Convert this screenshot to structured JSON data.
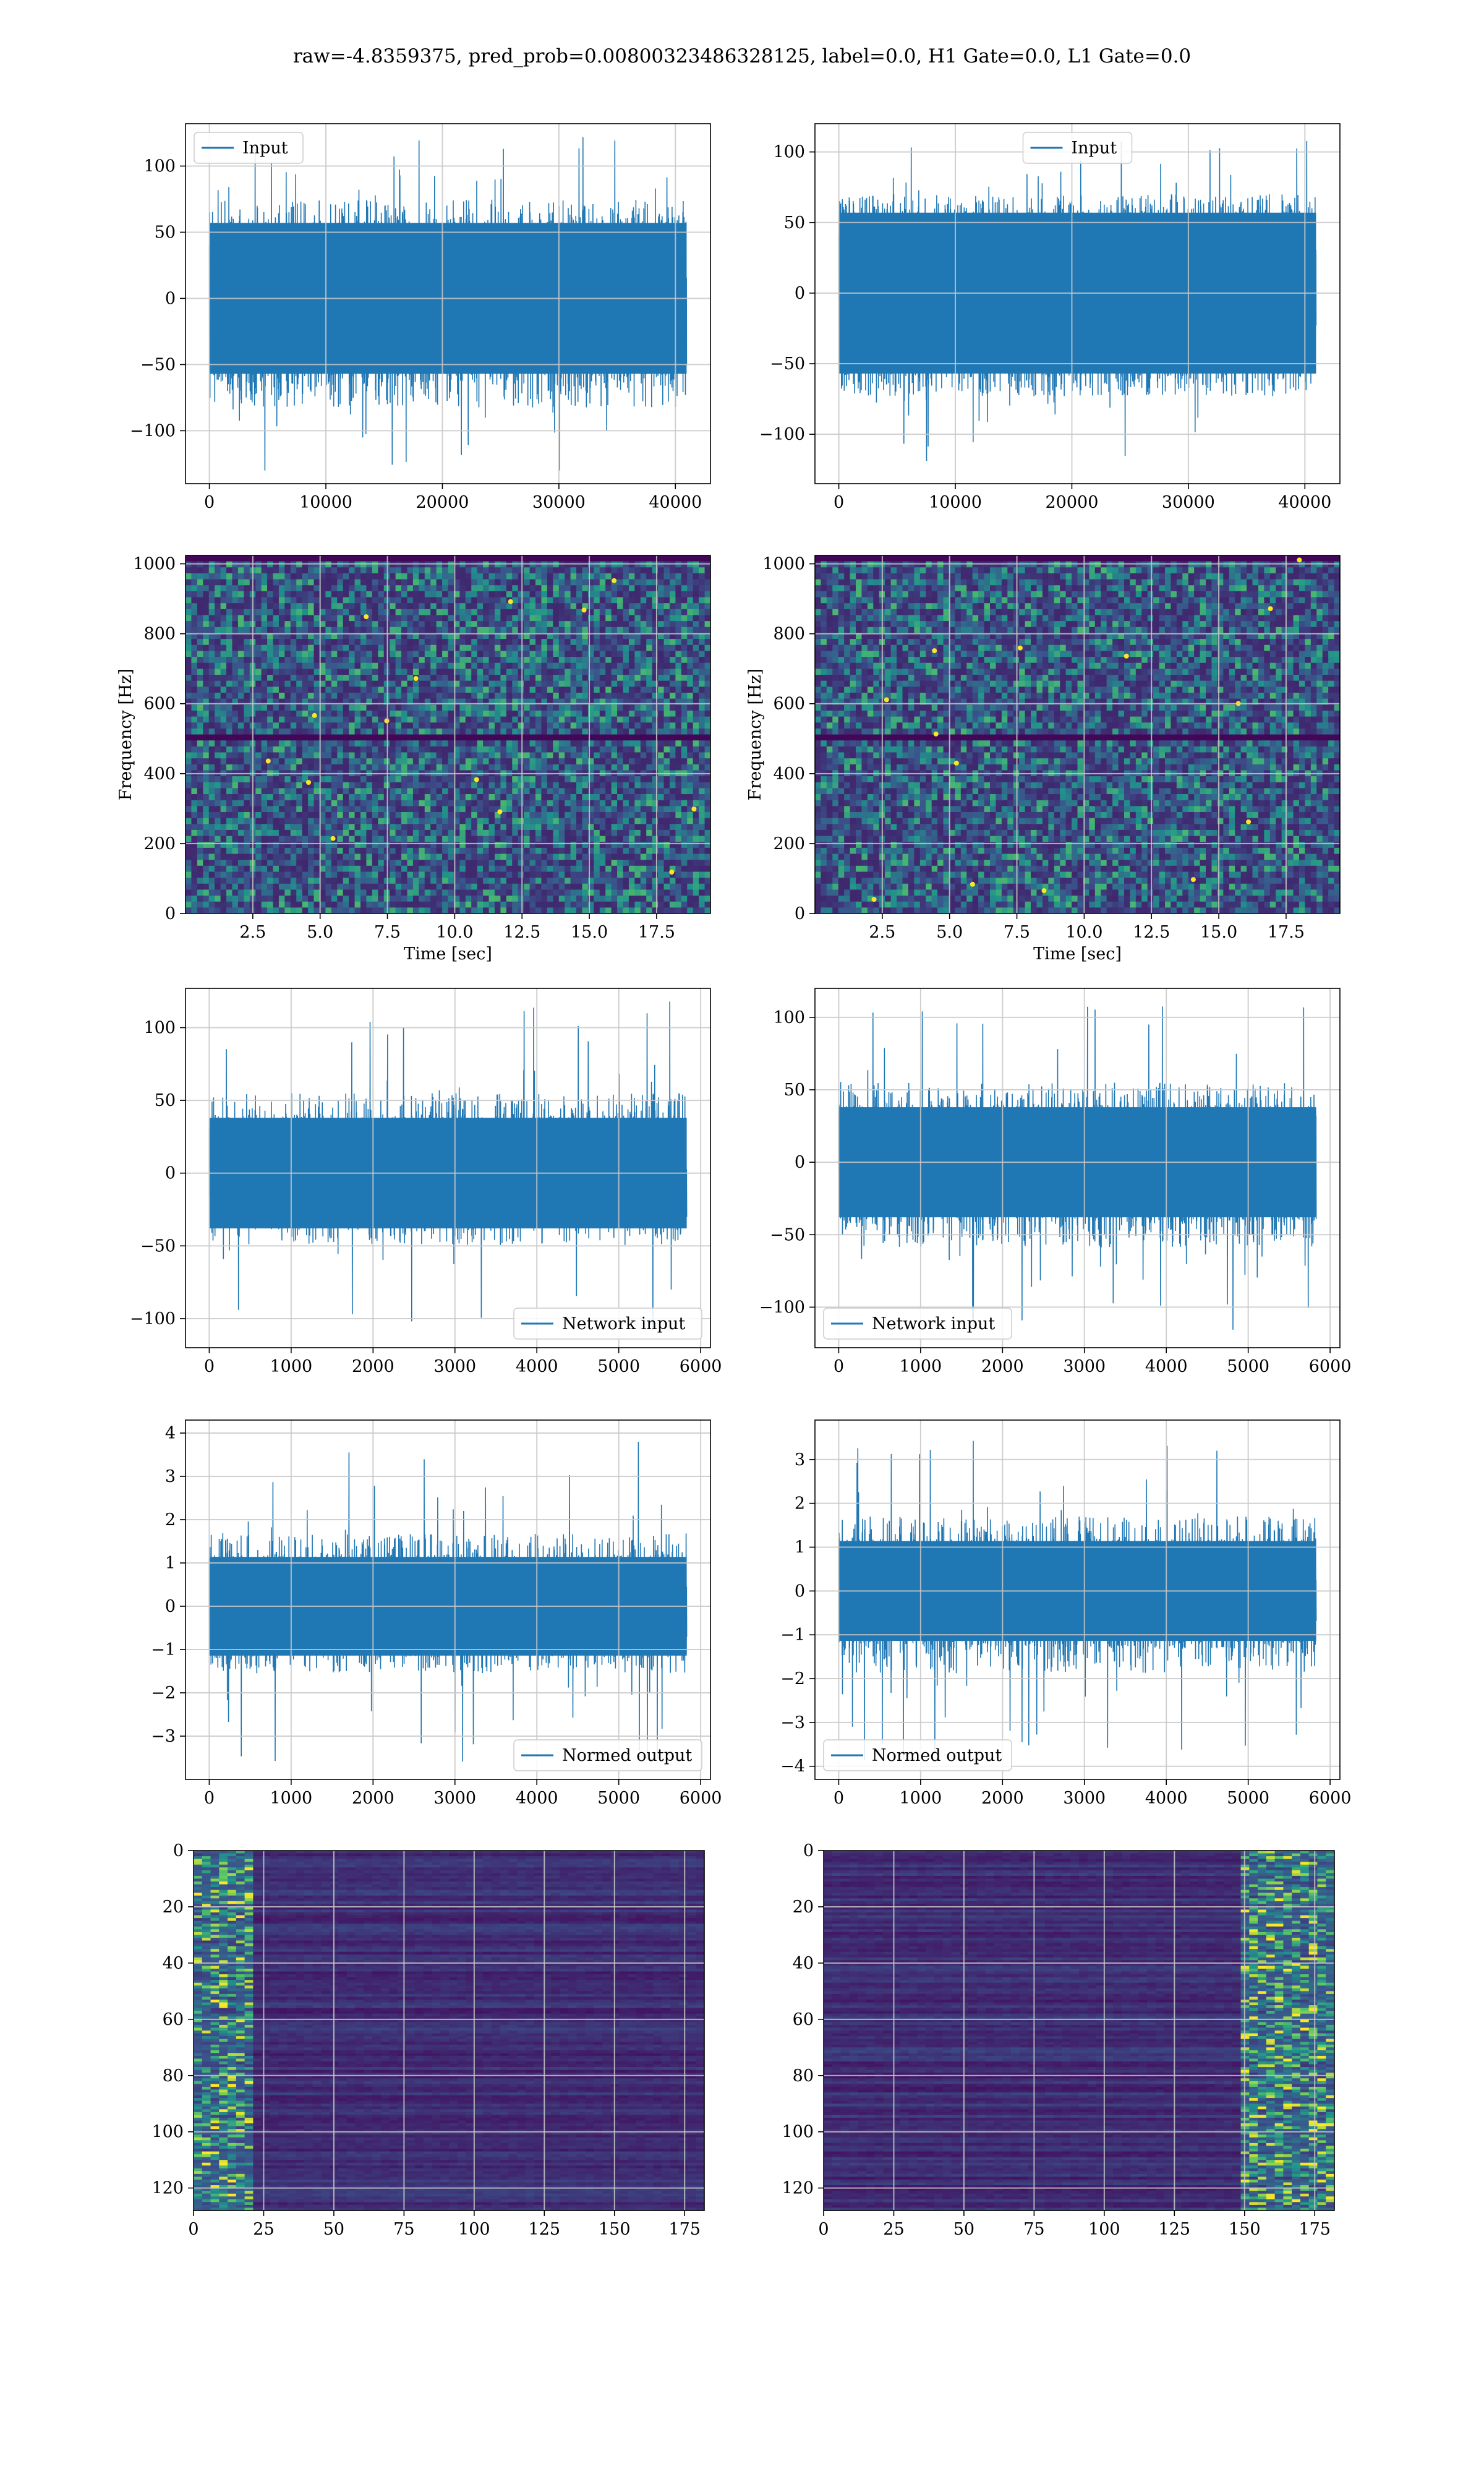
{
  "figure": {
    "title": "raw=-4.8359375, pred_prob=0.00800323486328125, label=0.0, H1 Gate=0.0, L1 Gate=0.0",
    "colors": {
      "signal": "#1f77b4",
      "grid": "#c8c8c8",
      "viridis_low": "#440154",
      "viridis_mid": "#21918c",
      "viridis_high": "#fde725"
    }
  },
  "chart_data": [
    {
      "id": "h1-input",
      "type": "line",
      "title": "",
      "xlabel": "",
      "ylabel": "",
      "xlim": [
        -2048,
        43008
      ],
      "ylim": [
        -140,
        132
      ],
      "xticks": [
        0,
        10000,
        20000,
        30000,
        40000
      ],
      "yticks": [
        -100,
        -50,
        0,
        50,
        100
      ],
      "legend_position": "upper left",
      "grid": true,
      "series": [
        {
          "name": "Input",
          "n_points": 40960,
          "envelope_low": [
            -60,
            -75
          ],
          "envelope_high": [
            60,
            75
          ],
          "peak_max": 122,
          "peak_min": -134
        }
      ]
    },
    {
      "id": "l1-input",
      "type": "line",
      "title": "",
      "xlabel": "",
      "ylabel": "",
      "xlim": [
        -2048,
        43008
      ],
      "ylim": [
        -135,
        120
      ],
      "xticks": [
        0,
        10000,
        20000,
        30000,
        40000
      ],
      "yticks": [
        -100,
        -50,
        0,
        50,
        100
      ],
      "legend_position": "upper center",
      "grid": true,
      "series": [
        {
          "name": "Input",
          "n_points": 40960,
          "envelope_low": [
            -60,
            -70
          ],
          "envelope_high": [
            60,
            70
          ],
          "peak_max": 115,
          "peak_min": -120
        }
      ]
    },
    {
      "id": "h1-spectrogram",
      "type": "heatmap",
      "title": "",
      "xlabel": "Time [sec]",
      "ylabel": "Frequency [Hz]",
      "xlim": [
        0,
        19.5
      ],
      "ylim": [
        0,
        1024
      ],
      "xticks": [
        2.5,
        5.0,
        7.5,
        10.0,
        12.5,
        15.0,
        17.5
      ],
      "yticks": [
        0,
        200,
        400,
        600,
        800,
        1000
      ],
      "grid": true,
      "colormap": "viridis",
      "dark_bands_hz": [
        505,
        1020
      ]
    },
    {
      "id": "l1-spectrogram",
      "type": "heatmap",
      "title": "",
      "xlabel": "Time [sec]",
      "ylabel": "Frequency [Hz]",
      "xlim": [
        0,
        19.5
      ],
      "ylim": [
        0,
        1024
      ],
      "xticks": [
        2.5,
        5.0,
        7.5,
        10.0,
        12.5,
        15.0,
        17.5
      ],
      "yticks": [
        0,
        200,
        400,
        600,
        800,
        1000
      ],
      "grid": true,
      "colormap": "viridis",
      "dark_bands_hz": [
        505,
        1020
      ]
    },
    {
      "id": "h1-network-input",
      "type": "line",
      "title": "",
      "xlabel": "",
      "ylabel": "",
      "xlim": [
        -290,
        6120
      ],
      "ylim": [
        -120,
        127
      ],
      "xticks": [
        0,
        1000,
        2000,
        3000,
        4000,
        5000,
        6000
      ],
      "yticks": [
        -100,
        -50,
        0,
        50,
        100
      ],
      "legend_position": "lower right",
      "grid": true,
      "series": [
        {
          "name": "Network input",
          "n_points": 5830,
          "envelope_low": [
            -40,
            -55
          ],
          "envelope_high": [
            40,
            55
          ],
          "peak_max": 122,
          "peak_min": -110
        }
      ]
    },
    {
      "id": "l1-network-input",
      "type": "line",
      "title": "",
      "xlabel": "",
      "ylabel": "",
      "xlim": [
        -290,
        6120
      ],
      "ylim": [
        -128,
        120
      ],
      "xticks": [
        0,
        1000,
        2000,
        3000,
        4000,
        5000,
        6000
      ],
      "yticks": [
        -100,
        -50,
        0,
        50,
        100
      ],
      "legend_position": "lower left",
      "grid": true,
      "series": [
        {
          "name": "Network input",
          "n_points": 5830,
          "envelope_low": [
            -40,
            -55
          ],
          "envelope_high": [
            40,
            55
          ],
          "peak_max": 110,
          "peak_min": -117
        }
      ]
    },
    {
      "id": "h1-normed-output",
      "type": "line",
      "title": "",
      "xlabel": "",
      "ylabel": "",
      "xlim": [
        -290,
        6120
      ],
      "ylim": [
        -4.0,
        4.3
      ],
      "xticks": [
        0,
        1000,
        2000,
        3000,
        4000,
        5000,
        6000
      ],
      "yticks": [
        -3,
        -2,
        -1,
        0,
        1,
        2,
        3,
        4
      ],
      "legend_position": "lower right",
      "grid": true,
      "series": [
        {
          "name": "Normed output",
          "n_points": 5830,
          "envelope_low": [
            -1.2,
            -1.7
          ],
          "envelope_high": [
            1.2,
            1.7
          ],
          "peak_max": 3.95,
          "peak_min": -3.6
        }
      ]
    },
    {
      "id": "l1-normed-output",
      "type": "line",
      "title": "",
      "xlabel": "",
      "ylabel": "",
      "xlim": [
        -290,
        6120
      ],
      "ylim": [
        -4.3,
        3.9
      ],
      "xticks": [
        0,
        1000,
        2000,
        3000,
        4000,
        5000,
        6000
      ],
      "yticks": [
        -4,
        -3,
        -2,
        -1,
        0,
        1,
        2,
        3
      ],
      "legend_position": "lower left",
      "grid": true,
      "series": [
        {
          "name": "Normed output",
          "n_points": 5830,
          "envelope_low": [
            -1.2,
            -1.7
          ],
          "envelope_high": [
            1.2,
            1.7
          ],
          "peak_max": 3.55,
          "peak_min": -3.9
        }
      ]
    },
    {
      "id": "h1-feature-map",
      "type": "heatmap",
      "title": "",
      "xlabel": "",
      "ylabel": "",
      "xlim": [
        0,
        182
      ],
      "ylim": [
        128,
        0
      ],
      "xticks": [
        0,
        25,
        50,
        75,
        100,
        125,
        150,
        175
      ],
      "yticks": [
        0,
        20,
        40,
        60,
        80,
        100,
        120
      ],
      "grid": true,
      "colormap": "viridis",
      "bright_columns": [
        0,
        22
      ]
    },
    {
      "id": "l1-feature-map",
      "type": "heatmap",
      "title": "",
      "xlabel": "",
      "ylabel": "",
      "xlim": [
        0,
        182
      ],
      "ylim": [
        128,
        0
      ],
      "xticks": [
        0,
        25,
        50,
        75,
        100,
        125,
        150,
        175
      ],
      "yticks": [
        0,
        20,
        40,
        60,
        80,
        100,
        120
      ],
      "grid": true,
      "colormap": "viridis",
      "bright_columns": [
        150,
        182
      ]
    }
  ]
}
